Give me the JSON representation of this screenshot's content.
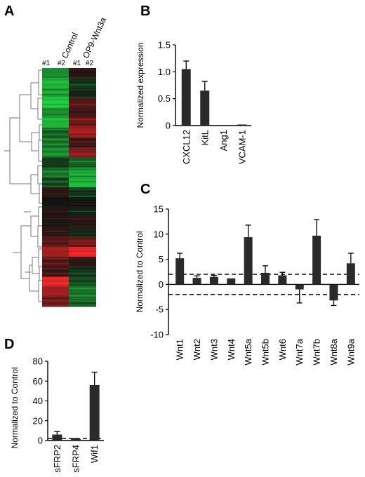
{
  "panels": {
    "A": "A",
    "B": "B",
    "C": "C",
    "D": "D"
  },
  "colors": {
    "bar": "#2a2a2a",
    "heat_high": "#ff2a2a",
    "heat_low": "#22dd44",
    "heat_mid": "#111111"
  },
  "chart_data": [
    {
      "panel": "A",
      "type": "heatmap",
      "columns": [
        "Control",
        "OP9-Wnt3a"
      ],
      "replicates": [
        "#1",
        "#2",
        "#1",
        "#2"
      ],
      "regions": [
        {
          "control": -0.6,
          "wnt3a": 0.1
        },
        {
          "control": -0.8,
          "wnt3a": -0.2
        },
        {
          "control": -0.7,
          "wnt3a": -0.1
        },
        {
          "control": -0.9,
          "wnt3a": 0.3
        },
        {
          "control": -0.6,
          "wnt3a": 0.2
        },
        {
          "control": -0.8,
          "wnt3a": 0.4
        },
        {
          "control": -0.4,
          "wnt3a": 0.6
        },
        {
          "control": -0.5,
          "wnt3a": 0.2
        },
        {
          "control": -0.6,
          "wnt3a": 0.5
        },
        {
          "control": -0.2,
          "wnt3a": -0.4
        },
        {
          "control": -0.5,
          "wnt3a": -0.7
        },
        {
          "control": -0.3,
          "wnt3a": -0.8
        },
        {
          "control": 0.1,
          "wnt3a": -0.2
        },
        {
          "control": 0.0,
          "wnt3a": 0.0
        },
        {
          "control": 0.1,
          "wnt3a": -0.1
        },
        {
          "control": 0.0,
          "wnt3a": 0.1
        },
        {
          "control": 0.1,
          "wnt3a": -0.1
        },
        {
          "control": 0.3,
          "wnt3a": 0.4
        },
        {
          "control": 0.6,
          "wnt3a": 0.9
        },
        {
          "control": 0.3,
          "wnt3a": 0.1
        },
        {
          "control": 0.2,
          "wnt3a": -0.2
        },
        {
          "control": 0.9,
          "wnt3a": -0.3
        },
        {
          "control": 0.6,
          "wnt3a": -0.5
        },
        {
          "control": 0.4,
          "wnt3a": -0.4
        }
      ]
    },
    {
      "panel": "B",
      "type": "bar",
      "ylabel": "Normalized expression",
      "ylim": [
        0,
        1.5
      ],
      "yticks": [
        "0",
        "0.5",
        "1.0",
        "1.5"
      ],
      "categories": [
        "CXCL12",
        "KitL",
        "Ang1",
        "VCAM-1"
      ],
      "values": [
        1.05,
        0.65,
        0.0,
        0.02
      ],
      "errors": [
        0.15,
        0.17,
        0.0,
        0.0
      ]
    },
    {
      "panel": "C",
      "type": "bar",
      "ylabel": "Normalized to Control",
      "ylim": [
        -10,
        15
      ],
      "yticks": [
        "-10",
        "-5",
        "0",
        "5",
        "10",
        "15"
      ],
      "categories": [
        "Wnt1",
        "Wnt2",
        "Wnt3",
        "Wnt4",
        "Wnt5a",
        "Wnt5b",
        "Wnt6",
        "Wnt7a",
        "Wnt7b",
        "Wnt8a",
        "Wnt9a"
      ],
      "values": [
        5.2,
        1.3,
        1.5,
        1.2,
        9.4,
        2.3,
        1.8,
        -1.0,
        9.7,
        -3.2,
        4.2
      ],
      "errors": [
        1.0,
        0.4,
        0.3,
        0.0,
        2.4,
        1.4,
        0.6,
        2.7,
        3.2,
        1.0,
        2.0
      ],
      "reference_lines": [
        2,
        -2
      ]
    },
    {
      "panel": "D",
      "type": "bar",
      "ylabel": "Normalized to Control",
      "ylim": [
        0,
        80
      ],
      "yticks": [
        "0",
        "20",
        "40",
        "60",
        "80"
      ],
      "categories": [
        "sFRP2",
        "sFRP4",
        "Wif1"
      ],
      "values": [
        6,
        1.5,
        56
      ],
      "errors": [
        3,
        0.5,
        13
      ],
      "reference_lines": [
        2
      ]
    }
  ]
}
